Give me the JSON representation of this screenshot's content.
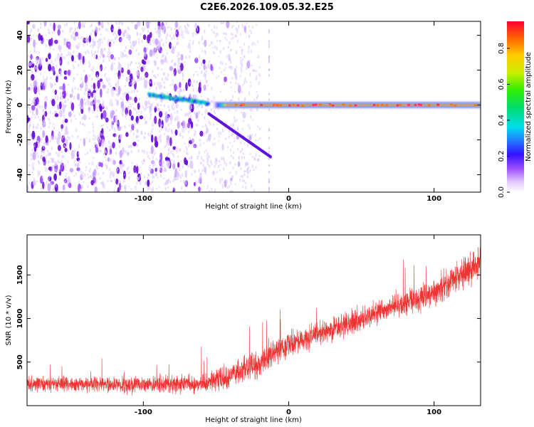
{
  "title": "C2E6.2026.109.05.32.E25",
  "chart_data": [
    {
      "type": "heatmap",
      "name": "spectrogram",
      "xlabel": "Height of straight line (km)",
      "ylabel": "Frequency (Hz)",
      "xlim": [
        -180,
        132
      ],
      "ylim": [
        -50,
        48
      ],
      "xticks": [
        -100,
        0,
        100
      ],
      "yticks": [
        -40,
        -20,
        0,
        20,
        40
      ],
      "colorbar": {
        "label": "Normalized spectral amplitude",
        "range": [
          0,
          0.95
        ],
        "ticks": [
          0.0,
          0.2,
          0.4,
          0.6,
          0.8
        ]
      },
      "features": [
        {
          "name": "noise region",
          "x_range": [
            -180,
            -40
          ],
          "y_range": [
            -50,
            48
          ]
        },
        {
          "name": "main signal band",
          "x_range": [
            -50,
            132
          ],
          "frequency": 0
        },
        {
          "name": "upper branch",
          "x_range": [
            -95,
            -55
          ],
          "frequency_range": [
            2,
            8
          ]
        },
        {
          "name": "lower branch",
          "x_range": [
            -55,
            -12
          ],
          "frequency_range": [
            -30,
            -5
          ]
        }
      ]
    },
    {
      "type": "line",
      "name": "snr",
      "xlabel": "Height of straight line (km)",
      "ylabel": "SNR (10 * v/v)",
      "xlim": [
        -180,
        132
      ],
      "ylim": [
        0,
        1960
      ],
      "xticks": [
        -100,
        0,
        100
      ],
      "yticks": [
        500,
        1000,
        1500
      ],
      "color": "#ee3333",
      "trend": [
        {
          "x": -180,
          "mean": 250,
          "spread": 120
        },
        {
          "x": -100,
          "mean": 240,
          "spread": 130
        },
        {
          "x": -60,
          "mean": 250,
          "spread": 160
        },
        {
          "x": -40,
          "mean": 340,
          "spread": 220
        },
        {
          "x": -20,
          "mean": 500,
          "spread": 220
        },
        {
          "x": 0,
          "mean": 700,
          "spread": 200
        },
        {
          "x": 50,
          "mean": 1000,
          "spread": 200
        },
        {
          "x": 100,
          "mean": 1300,
          "spread": 220
        },
        {
          "x": 132,
          "mean": 1650,
          "spread": 260
        }
      ]
    }
  ],
  "colors": {
    "signal_core": "#ff2222",
    "line": "#ee3333",
    "noise": "#8a2be2"
  }
}
